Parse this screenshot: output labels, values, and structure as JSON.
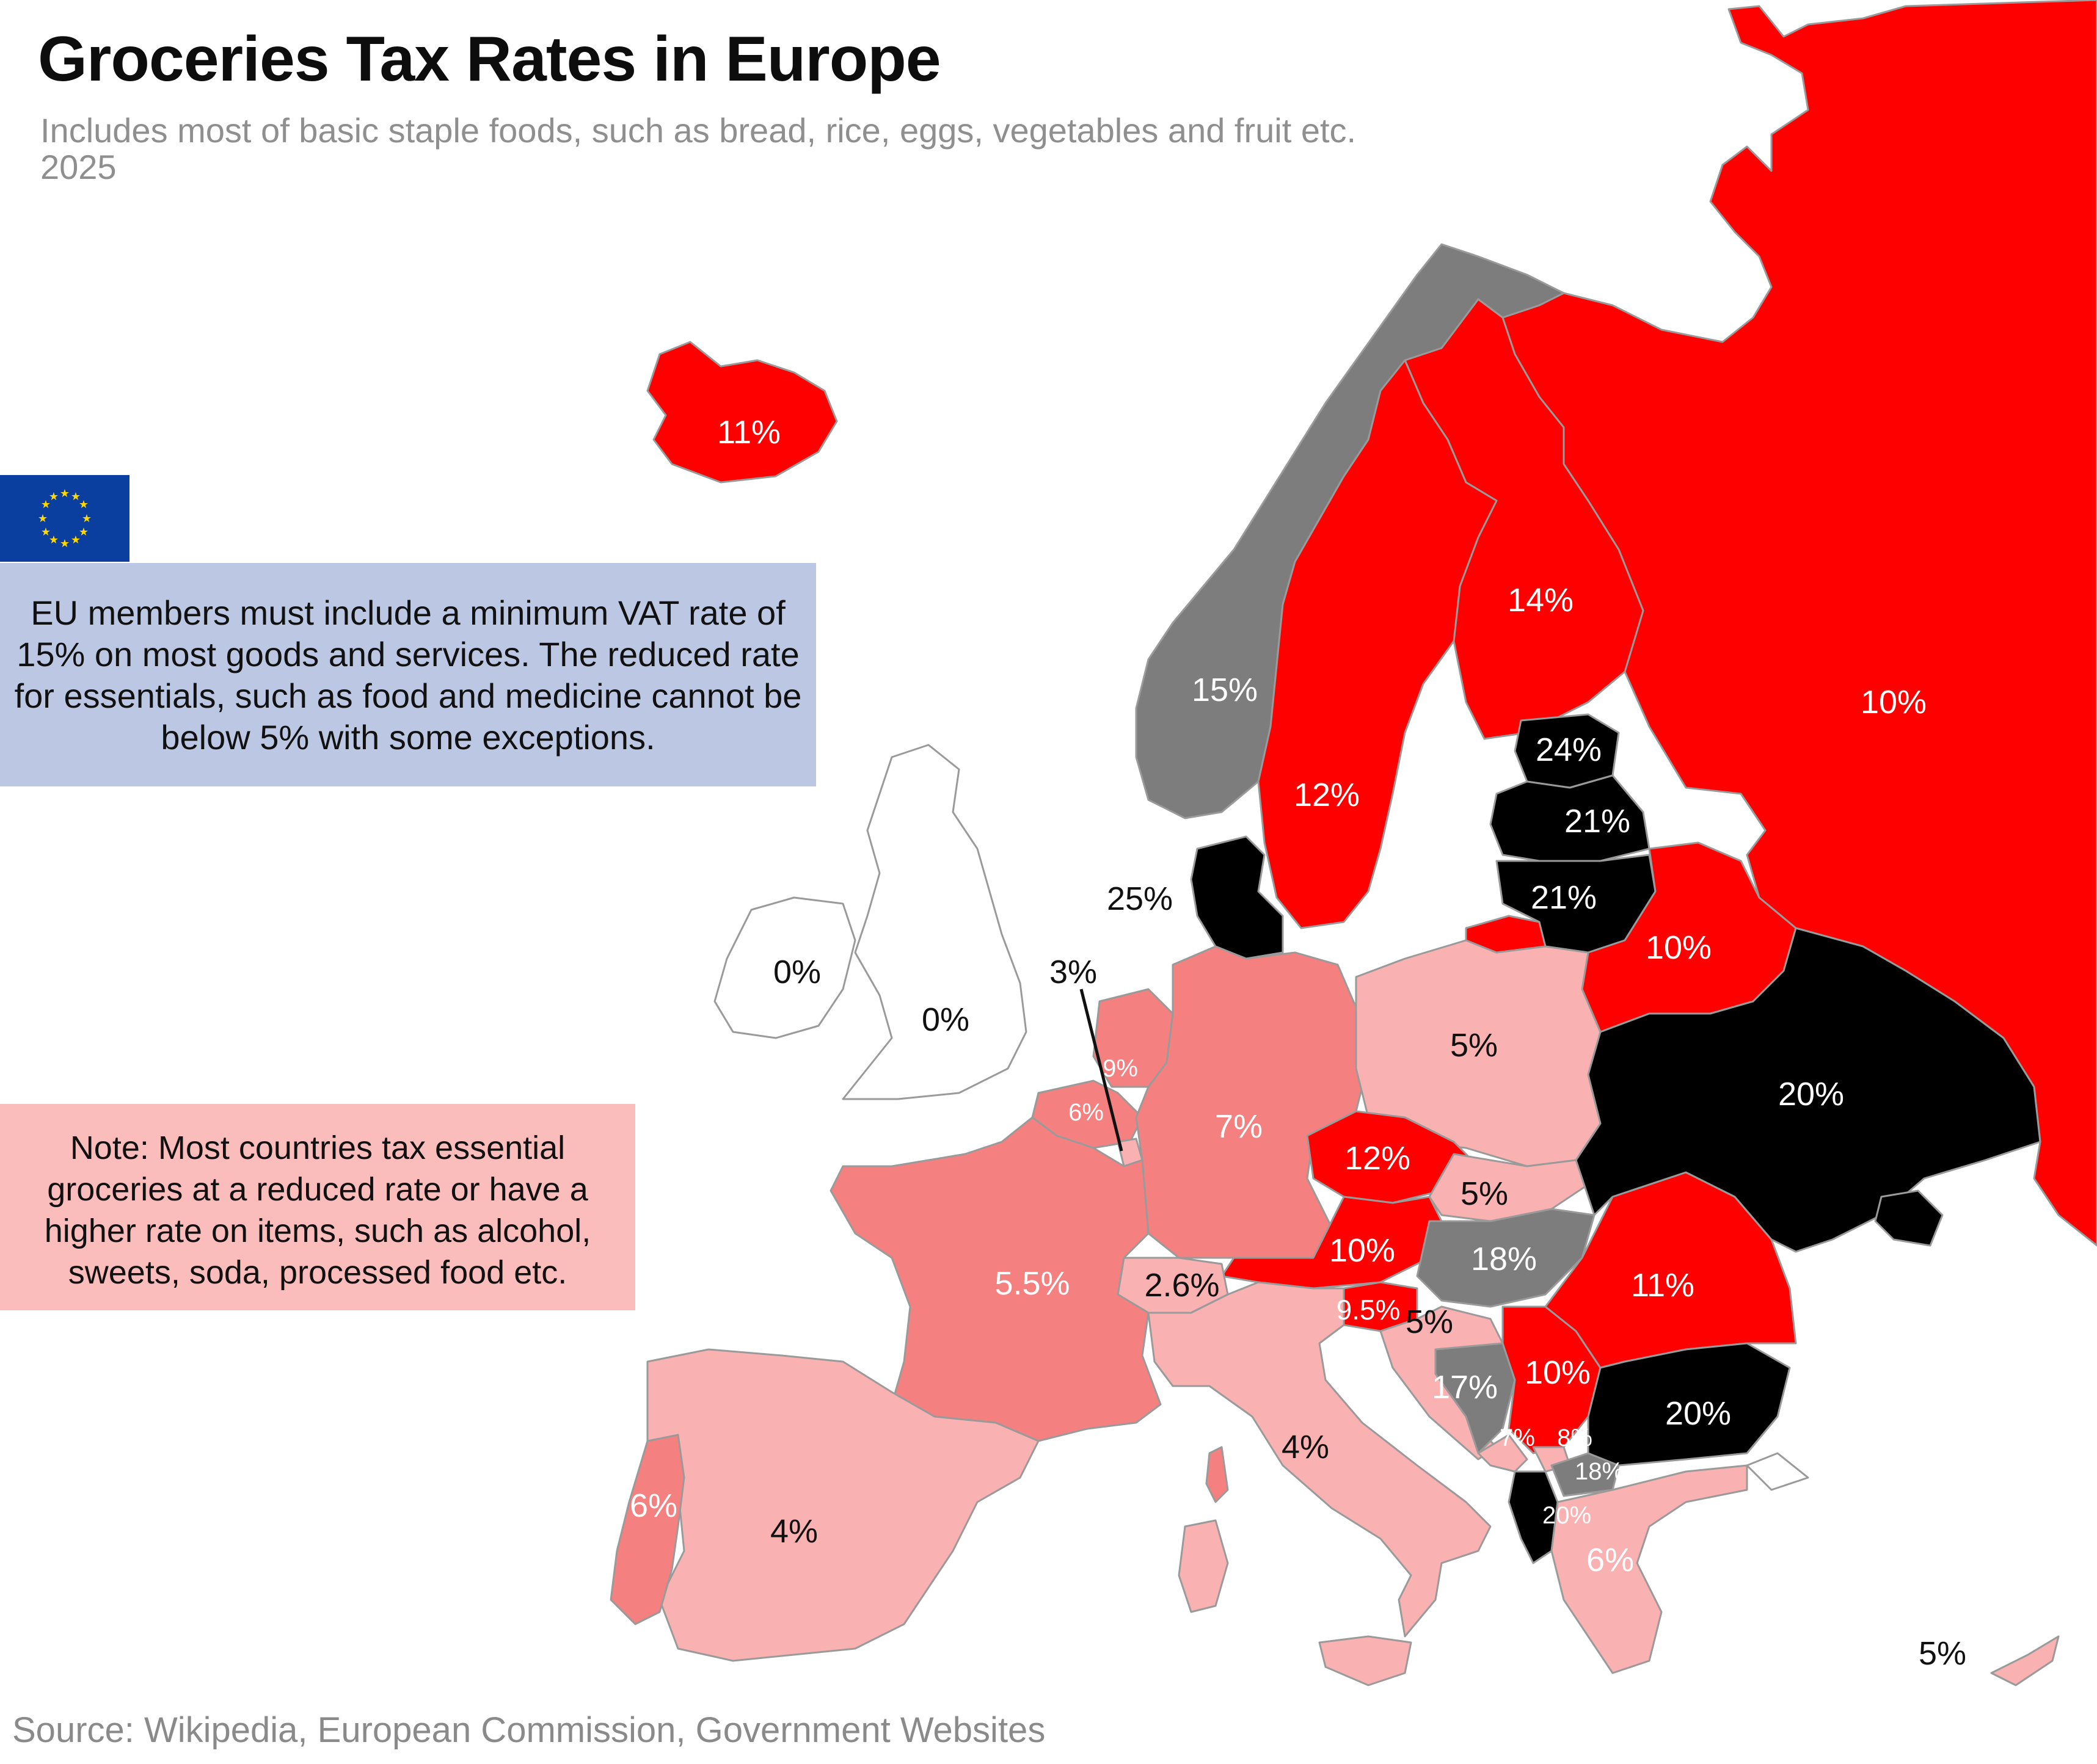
{
  "title": "Groceries Tax Rates in Europe",
  "subtitle_line1": "Includes most of basic staple foods, such as bread, rice, eggs, vegetables and fruit etc.",
  "subtitle_line2": "2025",
  "eu_note": "EU members must include a minimum VAT rate of 15% on most goods and services. The reduced rate for essentials, such as food and medicine cannot be below 5% with some exceptions.",
  "general_note": "Note: Most countries tax essential groceries at a reduced rate or have a higher rate on items, such as alcohol, sweets, soda, processed food etc.",
  "source": "Source: Wikipedia, European Commission, Government Websites",
  "colors": {
    "zero": "#ffffff",
    "low": "#f9b1b1",
    "mid": "#f58080",
    "high": "#ff0000",
    "non_eu_grey": "#7d7d7d",
    "top": "#000000",
    "eu_blue": "#0a3fa0",
    "eu_star": "#ffd800",
    "border": "#9a9a9a"
  },
  "labels": {
    "iceland": "11%",
    "norway": "15%",
    "sweden": "12%",
    "finland": "14%",
    "russia": "10%",
    "estonia": "24%",
    "latvia": "21%",
    "lithuania": "21%",
    "belarus": "10%",
    "denmark": "25%",
    "ireland": "0%",
    "uk": "0%",
    "luxembourg": "3%",
    "netherlands": "9%",
    "belgium": "6%",
    "germany": "7%",
    "poland": "5%",
    "ukraine": "20%",
    "czechia": "12%",
    "slovakia": "5%",
    "austria": "10%",
    "hungary": "18%",
    "switzerland": "2.6%",
    "france": "5.5%",
    "slovenia": "9.5%",
    "croatia": "5%",
    "romania": "11%",
    "bosnia": "17%",
    "serbia": "10%",
    "bulgaria": "20%",
    "montenegro": "7%",
    "kosovo": "8%",
    "north_macedonia": "18%",
    "albania": "20%",
    "greece": "6%",
    "italy": "4%",
    "portugal": "6%",
    "spain": "4%",
    "cyprus": "5%"
  }
}
